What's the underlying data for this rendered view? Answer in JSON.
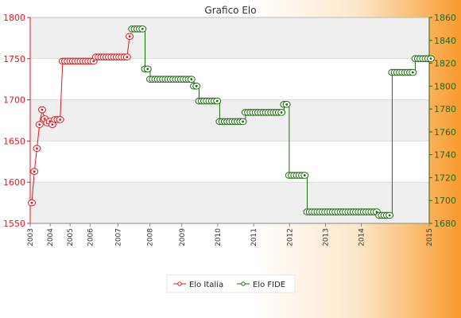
{
  "colors": {
    "italia": "#e8151a",
    "fide": "#1e6b12",
    "band": "#efefef",
    "grid": "#dcdcdc"
  },
  "legend": {
    "position": "bottom",
    "items": [
      {
        "label": "Elo Italia",
        "color": "#e8151a"
      },
      {
        "label": "Elo FIDE",
        "color": "#1e6b12"
      }
    ]
  },
  "chart_data": {
    "type": "line",
    "title": "Grafico Elo",
    "grid": true,
    "y_left": {
      "min": 1550,
      "max": 1800,
      "ticks": [
        1550,
        1600,
        1650,
        1700,
        1750,
        1800
      ]
    },
    "y_right": {
      "min": 1680,
      "max": 1860,
      "ticks": [
        1680,
        1700,
        1720,
        1740,
        1760,
        1780,
        1800,
        1820,
        1840,
        1860
      ]
    },
    "x_tick_labels": [
      "2003",
      "2004",
      "2005",
      "2006",
      "2007",
      "2008",
      "2009",
      "2010",
      "2011",
      "2012",
      "2013",
      "2014",
      "2015"
    ],
    "x_tick_fraction": [
      0.0,
      0.05,
      0.1,
      0.15,
      0.22,
      0.3,
      0.38,
      0.47,
      0.56,
      0.65,
      0.74,
      0.83,
      1.0
    ],
    "series": [
      {
        "name": "Elo Italia",
        "axis": "left",
        "segments": [
          {
            "value": 1575,
            "count": 1
          },
          {
            "value": 1613,
            "count": 1
          },
          {
            "value": 1641,
            "count": 1
          },
          {
            "value": 1670,
            "count": 1
          },
          {
            "value": 1688,
            "count": 1
          },
          {
            "value": 1677,
            "count": 1
          },
          {
            "value": 1672,
            "count": 1
          },
          {
            "value": 1674,
            "count": 1
          },
          {
            "value": 1670,
            "count": 1
          },
          {
            "value": 1676,
            "count": 1
          },
          {
            "value": 1676,
            "count": 1
          },
          {
            "value": 1676,
            "count": 1
          },
          {
            "value": 1747,
            "count": 13
          },
          {
            "value": 1752,
            "count": 13
          },
          {
            "value": 1777,
            "count": 1
          }
        ]
      },
      {
        "name": "Elo FIDE",
        "axis": "right",
        "segments": [
          {
            "value": 1850,
            "count": 5
          },
          {
            "value": 1815,
            "count": 2
          },
          {
            "value": 1806,
            "count": 17
          },
          {
            "value": 1800,
            "count": 2
          },
          {
            "value": 1787,
            "count": 8
          },
          {
            "value": 1769,
            "count": 10
          },
          {
            "value": 1777,
            "count": 15
          },
          {
            "value": 1784,
            "count": 2
          },
          {
            "value": 1722,
            "count": 7
          },
          {
            "value": 1690,
            "count": 28
          },
          {
            "value": 1687,
            "count": 5
          },
          {
            "value": 1812,
            "count": 9
          },
          {
            "value": 1824,
            "count": 7
          }
        ]
      }
    ]
  }
}
